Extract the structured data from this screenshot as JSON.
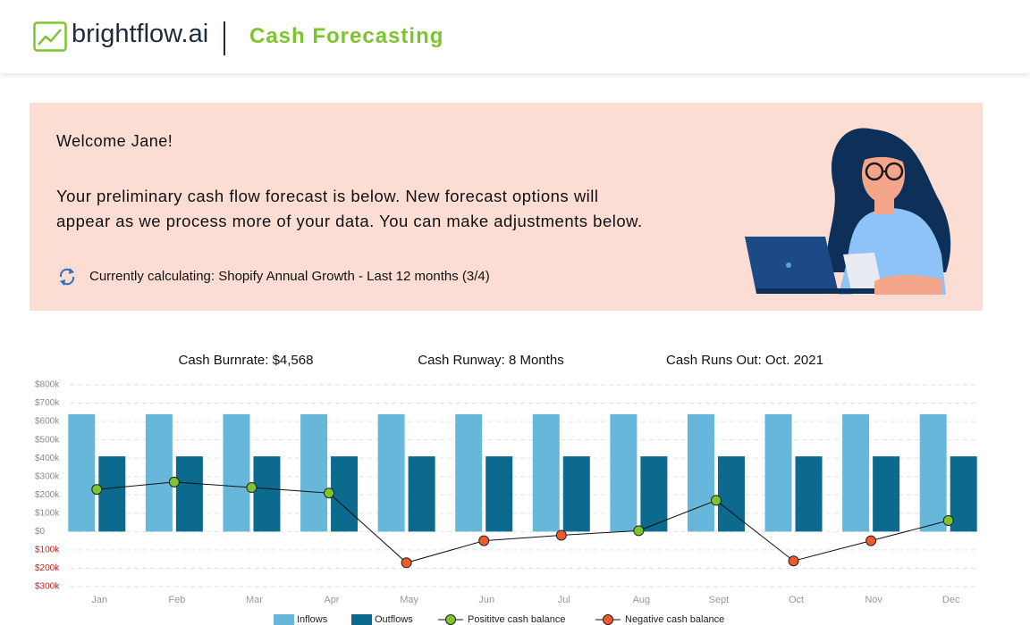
{
  "header": {
    "logo_text": "brightflow.ai",
    "title": "Cash Forecasting"
  },
  "banner": {
    "greeting": "Welcome Jane!",
    "message_lines": [
      "Your preliminary cash flow forecast is below. New forecast options will",
      "appear as we process more of your data. You can make adjustments below."
    ],
    "status": "Currently calculating: Shopify Annual Growth - Last 12 months (3/4)"
  },
  "chart_data": {
    "type": "bar",
    "stats": [
      "Cash Burnrate: $4,568",
      "Cash Runway: 8 Months",
      "Cash Runs Out: Oct. 2021"
    ],
    "categories": [
      "Jan",
      "Feb",
      "Mar",
      "Apr",
      "May",
      "Jun",
      "Jul",
      "Aug",
      "Sept",
      "Oct",
      "Nov",
      "Dec"
    ],
    "series": [
      {
        "name": "Inflows",
        "color": "#67b7da",
        "values": [
          640000,
          640000,
          640000,
          640000,
          640000,
          640000,
          640000,
          640000,
          640000,
          640000,
          640000,
          640000
        ]
      },
      {
        "name": "Outflows",
        "color": "#0c6a8e",
        "values": [
          410000,
          410000,
          410000,
          410000,
          410000,
          410000,
          410000,
          410000,
          410000,
          410000,
          410000,
          410000
        ]
      }
    ],
    "line": {
      "color": "#111111",
      "values": [
        230000,
        270000,
        240000,
        210000,
        -170000,
        -50000,
        -20000,
        5000,
        170000,
        -160000,
        -50000,
        60000
      ],
      "positive_name": "Posititve cash balance",
      "positive_color": "#7dc52e",
      "negative_name": "Negative cash balance",
      "negative_color": "#ee5a28"
    },
    "ylim": [
      -300000,
      800000
    ],
    "yticks": [
      {
        "value": -300000,
        "label": "$300k"
      },
      {
        "value": -200000,
        "label": "$200k"
      },
      {
        "value": -100000,
        "label": "$100k"
      },
      {
        "value": 0,
        "label": "$0"
      },
      {
        "value": 100000,
        "label": "$100k"
      },
      {
        "value": 200000,
        "label": "$200k"
      },
      {
        "value": 300000,
        "label": "$300k"
      },
      {
        "value": 400000,
        "label": "$400k"
      },
      {
        "value": 500000,
        "label": "$500k"
      },
      {
        "value": 600000,
        "label": "$600k"
      },
      {
        "value": 700000,
        "label": "$700k"
      },
      {
        "value": 800000,
        "label": "$800k"
      }
    ],
    "tick_color": "#8a8a8a",
    "negative_tick_color": "#c0281f",
    "grid": true,
    "legend": "bottom"
  }
}
